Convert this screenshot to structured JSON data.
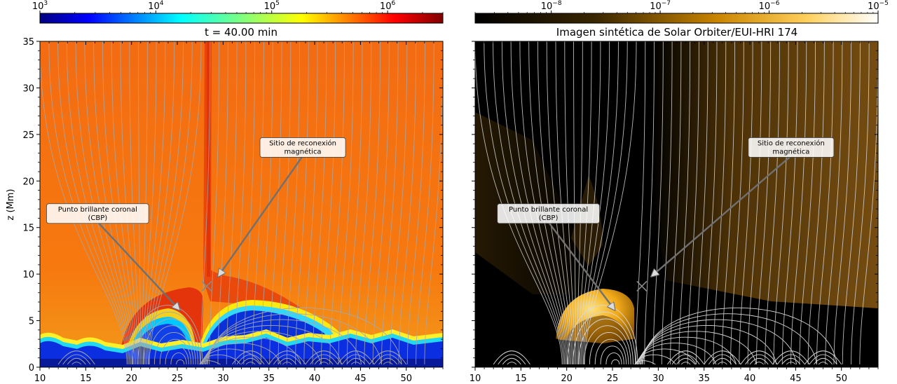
{
  "chart_data": [
    {
      "type": "heatmap",
      "title": "t = 40.00 min",
      "xlabel": "",
      "ylabel": "z (Mm)",
      "xlim": [
        10,
        54
      ],
      "ylim": [
        0,
        35
      ],
      "xticks": [
        10,
        15,
        20,
        25,
        30,
        35,
        40,
        45,
        50
      ],
      "yticks": [
        0,
        5,
        10,
        15,
        20,
        25,
        30,
        35
      ],
      "colorbar": {
        "scale": "log",
        "range": [
          1000,
          3000000
        ],
        "ticks": [
          {
            "base": "10",
            "exp": "3",
            "value": 1000
          },
          {
            "base": "10",
            "exp": "4",
            "value": 10000
          },
          {
            "base": "10",
            "exp": "5",
            "value": 100000
          },
          {
            "base": "10",
            "exp": "6",
            "value": 1000000
          }
        ],
        "colormap": "jet"
      },
      "annotations": [
        {
          "lines": [
            "Sitio de reconexión",
            "magnética"
          ],
          "text_at": [
            38.7,
            23.6
          ],
          "arrow_to": [
            29.5,
            9.8
          ]
        },
        {
          "lines": [
            "Punto brillante coronal",
            "(CBP)"
          ],
          "text_at": [
            16.3,
            16.5
          ],
          "arrow_to": [
            25.2,
            6.2
          ]
        }
      ],
      "marker": {
        "type": "x",
        "at": [
          28.2,
          8.7
        ]
      },
      "grid": false
    },
    {
      "type": "heatmap",
      "title": "Imagen sintética de Solar Orbiter/EUI-HRI 174",
      "xlabel": "",
      "ylabel": "",
      "xlim": [
        10,
        54
      ],
      "ylim": [
        0,
        35
      ],
      "xticks": [
        10,
        15,
        20,
        25,
        30,
        35,
        40,
        45,
        50
      ],
      "colorbar": {
        "scale": "log",
        "range": [
          2e-09,
          1e-05
        ],
        "ticks": [
          {
            "base": "10",
            "exp": "−8",
            "value": 1e-08
          },
          {
            "base": "10",
            "exp": "−7",
            "value": 1e-07
          },
          {
            "base": "10",
            "exp": "−6",
            "value": 1e-06
          },
          {
            "base": "10",
            "exp": "−5",
            "value": 1e-05
          }
        ],
        "colormap": "black-gold-white"
      },
      "annotations": [
        {
          "lines": [
            "Sitio de reconexión",
            "magnética"
          ],
          "text_at": [
            44.5,
            23.6
          ],
          "arrow_to": [
            29.3,
            9.8
          ]
        },
        {
          "lines": [
            "Punto brillante coronal",
            "(CBP)"
          ],
          "text_at": [
            18.0,
            16.5
          ],
          "arrow_to": [
            25.2,
            6.2
          ]
        }
      ],
      "marker": {
        "type": "x",
        "at": [
          28.2,
          8.7
        ]
      },
      "grid": false
    }
  ],
  "colors": {
    "field_lines_left": "#a8a8a8",
    "field_lines_right": "#d8d8d8",
    "arrow": "#707070"
  }
}
